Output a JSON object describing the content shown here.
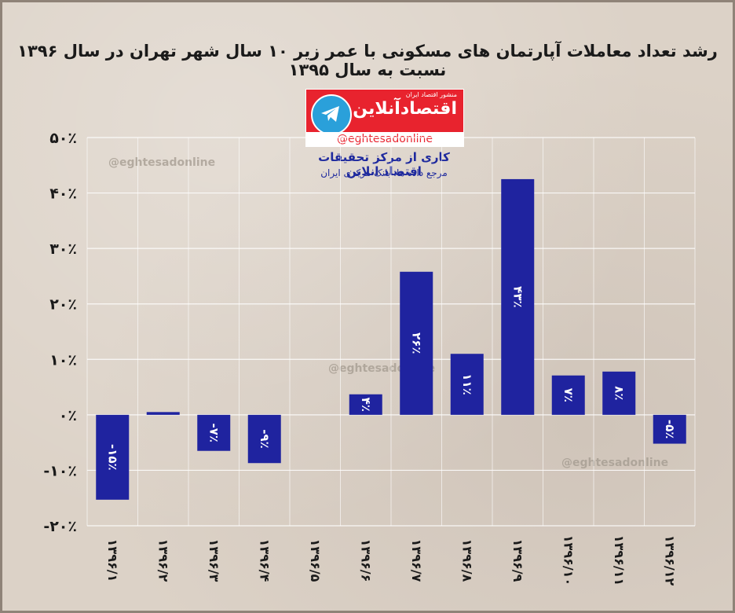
{
  "chart_data": {
    "type": "bar",
    "title": "رشد تعداد معاملات آپارتمان های مسکونی با عمر زیر ۱۰ سال شهر تهران در سال ۱۳۹۶ نسبت به سال ۱۳۹۵",
    "categories": [
      "۱۳۹۶/۱",
      "۱۳۹۶/۲",
      "۱۳۹۶/۳",
      "۱۳۹۶/۴",
      "۱۳۹۶/۵",
      "۱۳۹۶/۶",
      "۱۳۹۶/۷",
      "۱۳۹۶/۸",
      "۱۳۹۶/۹",
      "۱۳۹۶/۱۰",
      "۱۳۹۶/۱۱",
      "۱۳۹۶/۱۲"
    ],
    "values": [
      -15.3,
      0.5,
      -6.5,
      -8.7,
      0,
      3.7,
      25.8,
      11,
      42.5,
      7.1,
      7.8,
      -5.2
    ],
    "data_labels": [
      "-۱۵٪",
      "",
      "-۷٪",
      "-۹٪",
      "",
      "۴٪",
      "۲۶٪",
      "۱۱٪",
      "۴۳٪",
      "۷٪",
      "۸٪",
      "-۵٪"
    ],
    "y_ticks": [
      50,
      40,
      30,
      20,
      10,
      0,
      -10,
      -20
    ],
    "y_tick_labels": [
      "۵۰٪",
      "۴۰٪",
      "۳۰٪",
      "۲۰٪",
      "۱۰٪",
      "۰٪",
      "-۱۰٪",
      "-۲۰٪"
    ],
    "ylim": [
      -20,
      50
    ],
    "xlabel": "",
    "ylabel": "",
    "grid": true,
    "bar_color": "#1f239f"
  },
  "branding": {
    "logo_name": "اقتصادآنلاین",
    "logo_slogan": "منشور اقتصاد ایران",
    "logo_handle": "@eghtesadonline",
    "credit": "کاری از مرکز تحقیقات اقتصاد انلاین",
    "source": "مرجع داده ها: بانک مرکزی ایران",
    "watermark": "@eghtesadonline"
  }
}
